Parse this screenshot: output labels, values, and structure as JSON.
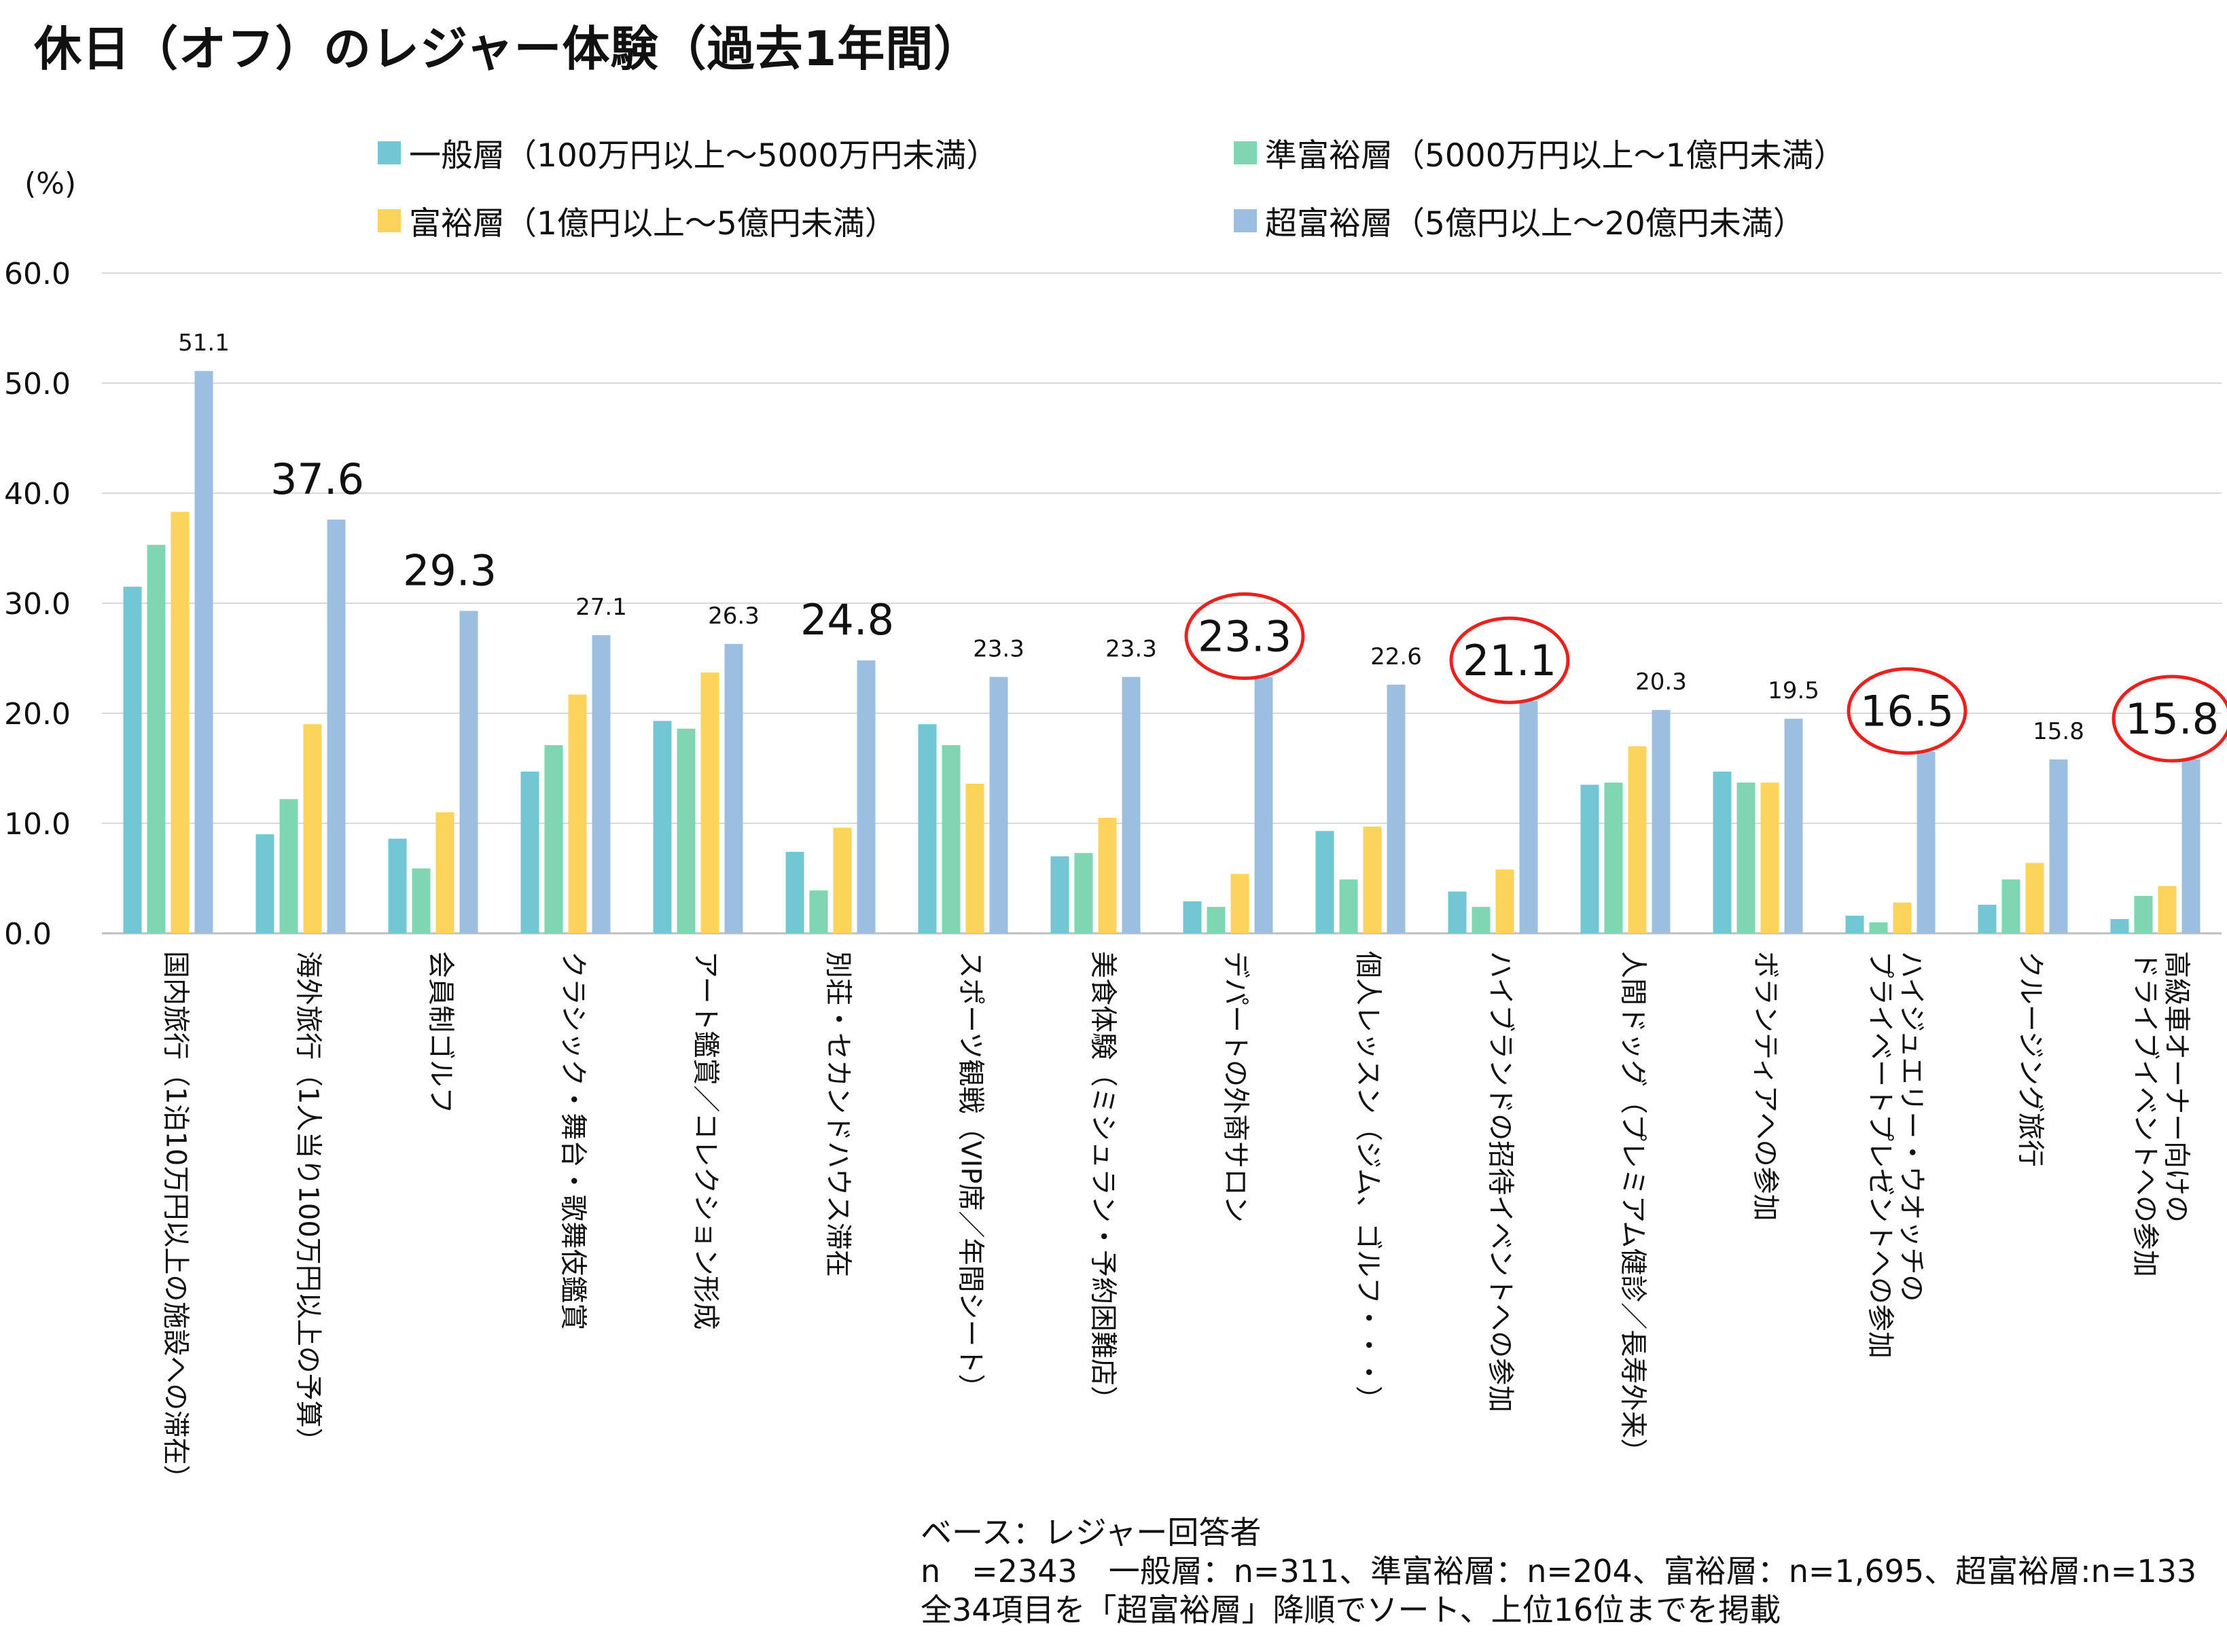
{
  "title": "休日（オフ）のレジャー体験（過去1年間）",
  "chart_data": {
    "type": "bar",
    "yunit": "(%)",
    "ylim": [
      0,
      60
    ],
    "yticks": [
      "0.0",
      "10.0",
      "20.0",
      "30.0",
      "40.0",
      "50.0",
      "60.0"
    ],
    "grid": true,
    "legend_position": "top",
    "categories": [
      [
        "国内旅行（1泊10万円以上の施設への滞在）"
      ],
      [
        "海外旅行（1人当り100万円以上の予算）"
      ],
      [
        "会員制ゴルフ"
      ],
      [
        "クラシック・舞台・歌舞伎鑑賞"
      ],
      [
        "アート鑑賞／コレクション形成"
      ],
      [
        "別荘・セカンドハウス滞在"
      ],
      [
        "スポーツ観戦（VIP席／年間シート）"
      ],
      [
        "美食体験（ミシュラン・予約困難店）"
      ],
      [
        "デパートの外商サロン"
      ],
      [
        "個人レッスン（ジム、ゴルフ・・・）"
      ],
      [
        "ハイブランドの招待イベントへの参加"
      ],
      [
        "人間ドッグ（プレミアム健診／長寿外来）"
      ],
      [
        "ボランティアへの参加"
      ],
      [
        "ハイジュエリー・ウオッチの",
        "プライベートプレゼントへの参加"
      ],
      [
        "クルージング旅行"
      ],
      [
        "高級車オーナー向けの",
        "ドライブイベントへの参加"
      ]
    ],
    "series": [
      {
        "name": "一般層（100万円以上～5000万円未満）",
        "color": "#73c6d4",
        "values": [
          31.5,
          9.0,
          8.6,
          14.7,
          19.3,
          7.4,
          19.0,
          7.0,
          2.9,
          9.3,
          3.8,
          13.5,
          14.7,
          1.6,
          2.6,
          1.3
        ]
      },
      {
        "name": "準富裕層（5000万円以上～1億円未満）",
        "color": "#7fd6b3",
        "values": [
          35.3,
          12.2,
          5.9,
          17.1,
          18.6,
          3.9,
          17.1,
          7.3,
          2.4,
          4.9,
          2.4,
          13.7,
          13.7,
          1.0,
          4.9,
          3.4
        ]
      },
      {
        "name": "富裕層（1億円以上～5億円未満）",
        "color": "#fcd45c",
        "values": [
          38.3,
          19.0,
          11.0,
          21.7,
          23.7,
          9.6,
          13.6,
          10.5,
          5.4,
          9.7,
          5.8,
          17.0,
          13.7,
          2.8,
          6.4,
          4.3
        ]
      },
      {
        "name": "超富裕層（5億円以上～20億円未満）",
        "color": "#9dbfdf",
        "values": [
          51.1,
          37.6,
          29.3,
          27.1,
          26.3,
          24.8,
          23.3,
          23.3,
          23.3,
          22.6,
          21.1,
          20.3,
          19.5,
          16.5,
          15.8,
          15.8
        ]
      }
    ],
    "data_labels": [
      "51.1",
      "37.6",
      "29.3",
      "27.1",
      "26.3",
      "24.8",
      "23.3",
      "23.3",
      "23.3",
      "22.6",
      "21.1",
      "20.3",
      "19.5",
      "16.5",
      "15.8",
      "15.8"
    ],
    "label_large": [
      false,
      true,
      true,
      false,
      false,
      true,
      false,
      false,
      true,
      false,
      true,
      false,
      false,
      true,
      false,
      true
    ],
    "label_circled": [
      false,
      false,
      false,
      false,
      false,
      false,
      false,
      false,
      true,
      false,
      true,
      false,
      false,
      true,
      false,
      true
    ]
  },
  "notes": [
    "ベース：レジャー回答者",
    "n　=2343　一般層：n=311、準富裕層：n=204、富裕層：n=1,695、超富裕層:n=133",
    "全34項目を「超富裕層」降順でソート、上位16位までを掲載"
  ]
}
